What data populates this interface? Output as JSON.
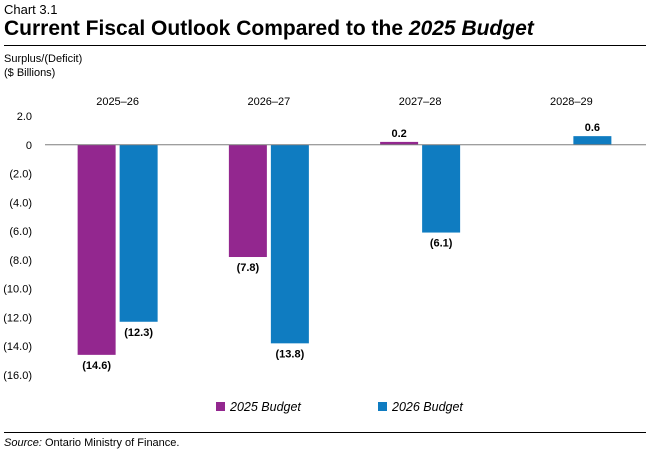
{
  "header": {
    "chart_label": "Chart 3.1",
    "title_plain": "Current Fiscal Outlook Compared to the ",
    "title_italic": "2025 Budget"
  },
  "footer": {
    "source_label": "Source:",
    "source_text": " Ontario Ministry of Finance."
  },
  "chart_data": {
    "type": "bar",
    "ylabel": [
      "Surplus/(Deficit)",
      "($ Billions)"
    ],
    "categories": [
      "2025–26",
      "2026–27",
      "2027–28",
      "2028–29"
    ],
    "ylim": [
      -16,
      2
    ],
    "yticks": [
      2,
      0,
      -2,
      -4,
      -6,
      -8,
      -10,
      -12,
      -14,
      -16
    ],
    "ytick_labels": [
      "2.0",
      "0",
      "(2.0)",
      "(4.0)",
      "(6.0)",
      "(8.0)",
      "(10.0)",
      "(12.0)",
      "(14.0)",
      "(16.0)"
    ],
    "grid": false,
    "legend_position": "bottom",
    "series": [
      {
        "name": "2025 Budget",
        "color": "#93278F",
        "values": [
          -14.6,
          -7.8,
          0.2,
          null
        ],
        "labels": [
          "(14.6)",
          "(7.8)",
          "0.2",
          ""
        ]
      },
      {
        "name": "2026 Budget",
        "color": "#0F7CC1",
        "values": [
          -12.3,
          -13.8,
          -6.1,
          0.6
        ],
        "labels": [
          "(12.3)",
          "(13.8)",
          "(6.1)",
          "0.6"
        ]
      }
    ]
  }
}
